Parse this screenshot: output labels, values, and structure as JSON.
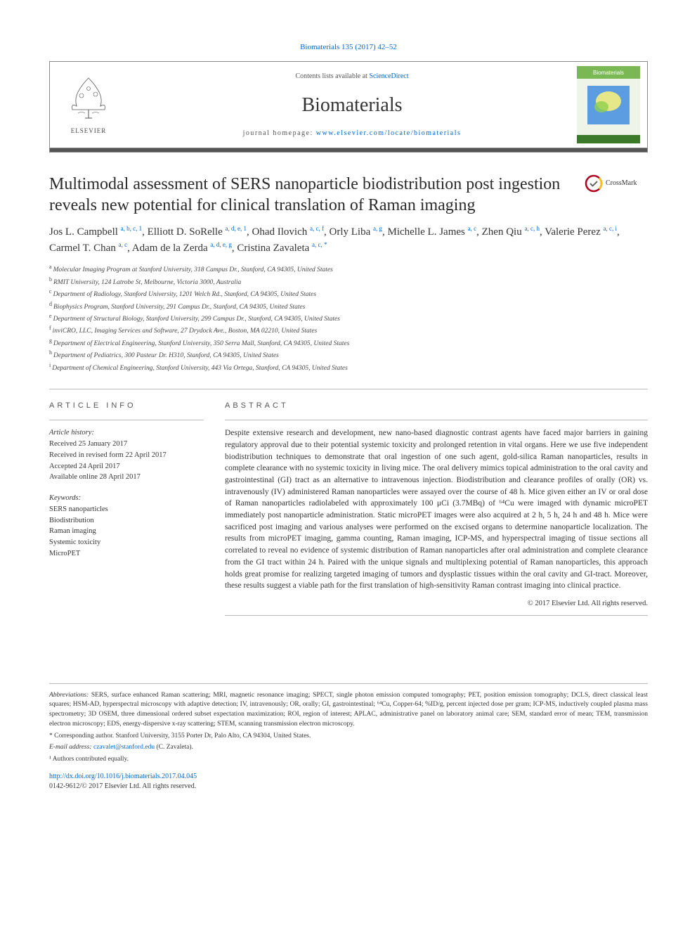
{
  "citation_link": "Biomaterials 135 (2017) 42–52",
  "header": {
    "contents_text": "Contents lists available at ",
    "contents_link": "ScienceDirect",
    "journal_name": "Biomaterials",
    "homepage_label": "journal homepage: ",
    "homepage_url": "www.elsevier.com/locate/biomaterials",
    "publisher_name": "ELSEVIER",
    "cover_label": "Biomaterials"
  },
  "crossmark_label": "CrossMark",
  "title": "Multimodal assessment of SERS nanoparticle biodistribution post ingestion reveals new potential for clinical translation of Raman imaging",
  "authors_html": [
    {
      "name": "Jos L. Campbell",
      "aff": "a, b, c, 1"
    },
    {
      "name": "Elliott D. SoRelle",
      "aff": "a, d, e, 1"
    },
    {
      "name": "Ohad Ilovich",
      "aff": "a, c, f"
    },
    {
      "name": "Orly Liba",
      "aff": "a, g"
    },
    {
      "name": "Michelle L. James",
      "aff": "a, c"
    },
    {
      "name": "Zhen Qiu",
      "aff": "a, c, h"
    },
    {
      "name": "Valerie Perez",
      "aff": "a, c, i"
    },
    {
      "name": "Carmel T. Chan",
      "aff": "a, c"
    },
    {
      "name": "Adam de la Zerda",
      "aff": "a, d, e, g"
    },
    {
      "name": "Cristina Zavaleta",
      "aff": "a, c, *"
    }
  ],
  "affiliations": [
    {
      "sup": "a",
      "text": "Molecular Imaging Program at Stanford University, 318 Campus Dr., Stanford, CA 94305, United States"
    },
    {
      "sup": "b",
      "text": "RMIT University, 124 Latrobe St, Melbourne, Victoria 3000, Australia"
    },
    {
      "sup": "c",
      "text": "Department of Radiology, Stanford University, 1201 Welch Rd., Stanford, CA 94305, United States"
    },
    {
      "sup": "d",
      "text": "Biophysics Program, Stanford University, 291 Campus Dr., Stanford, CA 94305, United States"
    },
    {
      "sup": "e",
      "text": "Department of Structural Biology, Stanford University, 299 Campus Dr., Stanford, CA 94305, United States"
    },
    {
      "sup": "f",
      "text": "inviCRO, LLC, Imaging Services and Software, 27 Drydock Ave., Boston, MA 02210, United States"
    },
    {
      "sup": "g",
      "text": "Department of Electrical Engineering, Stanford University, 350 Serra Mall, Stanford, CA 94305, United States"
    },
    {
      "sup": "h",
      "text": "Department of Pediatrics, 300 Pasteur Dr. H310, Stanford, CA 94305, United States"
    },
    {
      "sup": "i",
      "text": "Department of Chemical Engineering, Stanford University, 443 Via Ortega, Stanford, CA 94305, United States"
    }
  ],
  "article_info": {
    "heading": "ARTICLE INFO",
    "history_label": "Article history:",
    "received": "Received 25 January 2017",
    "revised": "Received in revised form 22 April 2017",
    "accepted": "Accepted 24 April 2017",
    "online": "Available online 28 April 2017",
    "keywords_label": "Keywords:",
    "keywords": [
      "SERS nanoparticles",
      "Biodistribution",
      "Raman imaging",
      "Systemic toxicity",
      "MicroPET"
    ]
  },
  "abstract": {
    "heading": "ABSTRACT",
    "text": "Despite extensive research and development, new nano-based diagnostic contrast agents have faced major barriers in gaining regulatory approval due to their potential systemic toxicity and prolonged retention in vital organs. Here we use five independent biodistribution techniques to demonstrate that oral ingestion of one such agent, gold-silica Raman nanoparticles, results in complete clearance with no systemic toxicity in living mice. The oral delivery mimics topical administration to the oral cavity and gastrointestinal (GI) tract as an alternative to intravenous injection. Biodistribution and clearance profiles of orally (OR) vs. intravenously (IV) administered Raman nanoparticles were assayed over the course of 48 h. Mice given either an IV or oral dose of Raman nanoparticles radiolabeled with approximately 100 μCi (3.7MBq) of ⁶⁴Cu were imaged with dynamic microPET immediately post nanoparticle administration. Static microPET images were also acquired at 2 h, 5 h, 24 h and 48 h. Mice were sacrificed post imaging and various analyses were performed on the excised organs to determine nanoparticle localization. The results from microPET imaging, gamma counting, Raman imaging, ICP-MS, and hyperspectral imaging of tissue sections all correlated to reveal no evidence of systemic distribution of Raman nanoparticles after oral administration and complete clearance from the GI tract within 24 h. Paired with the unique signals and multiplexing potential of Raman nanoparticles, this approach holds great promise for realizing targeted imaging of tumors and dysplastic tissues within the oral cavity and GI-tract. Moreover, these results suggest a viable path for the first translation of high-sensitivity Raman contrast imaging into clinical practice.",
    "copyright": "© 2017 Elsevier Ltd. All rights reserved."
  },
  "footnotes": {
    "abbreviations_label": "Abbreviations:",
    "abbreviations": " SERS, surface enhanced Raman scattering; MRI, magnetic resonance imaging; SPECT, single photon emission computed tomography; PET, position emission tomography; DCLS, direct classical least squares; HSM-AD, hyperspectral microscopy with adaptive detection; IV, intravenously; OR, orally; GI, gastrointestinal; ⁶⁴Cu, Copper-64; %ID/g, percent injected dose per gram; ICP-MS, inductively coupled plasma mass spectrometry; 3D OSEM, three dimensional ordered subset expectation maximization; ROI, region of interest; APLAC, administrative panel on laboratory animal care; SEM, standard error of mean; TEM, transmission electron microscopy; EDS, energy-dispersive x-ray scattering; STEM, scanning transmission electron microscopy.",
    "corresponding_label": "* Corresponding author. Stanford University, 3155 Porter Dr, Palo Alto, CA 94304, United States.",
    "email_label": "E-mail address: ",
    "email": "czavalet@stanford.edu",
    "email_person": " (C. Zavaleta).",
    "equal_contrib": "¹ Authors contributed equally."
  },
  "doi": {
    "url": "http://dx.doi.org/10.1016/j.biomaterials.2017.04.045",
    "issn_line": "0142-9612/© 2017 Elsevier Ltd. All rights reserved."
  },
  "colors": {
    "link": "#0066cc",
    "border": "#888888",
    "text": "#333333",
    "bar": "#555555",
    "cover_bg1": "#7ab853",
    "cover_bg2": "#3a7a2a",
    "cover_blue": "#5b9de0",
    "cover_yellow": "#f5f080",
    "crossmark_ring": "#b00020"
  }
}
